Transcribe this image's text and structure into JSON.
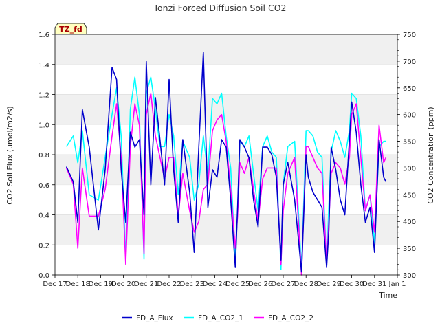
{
  "chart_data": {
    "type": "line",
    "title": "Tonzi Forced Diffusion Soil CO2",
    "badge": "TZ_fd",
    "xlabel": "Time",
    "ylabel_left": "CO2 Soil Flux (umol/m2/s)",
    "ylabel_right": "CO2 Concentration (ppm)",
    "ylim_left": [
      0,
      1.6
    ],
    "ylim_right": [
      300,
      750
    ],
    "yticks_left": [
      "0.0",
      "0.2",
      "0.4",
      "0.6",
      "0.8",
      "1.0",
      "1.2",
      "1.4",
      "1.6"
    ],
    "yticks_right": [
      "300",
      "350",
      "400",
      "450",
      "500",
      "550",
      "600",
      "650",
      "700",
      "750"
    ],
    "xticks": [
      "Dec 17",
      "Dec 18",
      "Dec 19",
      "Dec 20",
      "Dec 21",
      "Dec 22",
      "Dec 23",
      "Dec 24",
      "Dec 25",
      "Dec 26",
      "Dec 27",
      "Dec 28",
      "Dec 29",
      "Dec 30",
      "Dec 31",
      "Jan 1"
    ],
    "xlim_days": [
      17,
      32
    ],
    "grid": "horizontal bands",
    "legend_position": "bottom",
    "series": [
      {
        "name": "FD_A_Flux",
        "axis": "left",
        "color": "#0000cc",
        "x": [
          17.5,
          17.8,
          18.0,
          18.2,
          18.5,
          18.9,
          19.2,
          19.5,
          19.7,
          19.9,
          20.1,
          20.3,
          20.5,
          20.7,
          20.9,
          21.0,
          21.2,
          21.4,
          21.6,
          21.8,
          22.0,
          22.2,
          22.4,
          22.6,
          22.9,
          23.1,
          23.3,
          23.5,
          23.7,
          23.9,
          24.1,
          24.3,
          24.5,
          24.7,
          24.9,
          25.0,
          25.1,
          25.3,
          25.5,
          25.7,
          25.9,
          26.1,
          26.3,
          26.5,
          26.7,
          26.9,
          27.0,
          27.2,
          27.5,
          27.8,
          28.0,
          28.1,
          28.3,
          28.5,
          28.7,
          28.9,
          29.0,
          29.1,
          29.3,
          29.5,
          29.7,
          29.9,
          30.0,
          30.2,
          30.4,
          30.6,
          30.8,
          31.0,
          31.2,
          31.4,
          31.5
        ],
        "y": [
          0.72,
          0.62,
          0.35,
          1.1,
          0.85,
          0.3,
          0.7,
          1.38,
          1.3,
          0.7,
          0.35,
          0.95,
          0.85,
          0.9,
          0.4,
          1.42,
          0.6,
          1.18,
          0.9,
          0.6,
          1.3,
          0.7,
          0.35,
          0.9,
          0.55,
          0.15,
          0.85,
          1.48,
          0.45,
          0.7,
          0.65,
          0.9,
          0.85,
          0.5,
          0.05,
          0.45,
          0.9,
          0.85,
          0.78,
          0.5,
          0.32,
          0.85,
          0.85,
          0.8,
          0.65,
          0.1,
          0.6,
          0.75,
          0.5,
          0.02,
          0.8,
          0.65,
          0.55,
          0.5,
          0.45,
          0.05,
          0.3,
          0.85,
          0.7,
          0.5,
          0.4,
          0.9,
          1.15,
          0.95,
          0.6,
          0.35,
          0.45,
          0.15,
          0.9,
          0.65,
          0.62
        ]
      },
      {
        "name": "FD_A_CO2_1",
        "axis": "right",
        "color": "#00ffff",
        "x": [
          17.5,
          17.8,
          18.0,
          18.2,
          18.5,
          18.9,
          19.2,
          19.5,
          19.7,
          19.9,
          20.1,
          20.3,
          20.5,
          20.7,
          20.9,
          21.0,
          21.2,
          21.4,
          21.6,
          21.8,
          22.0,
          22.2,
          22.4,
          22.6,
          22.9,
          23.1,
          23.3,
          23.5,
          23.7,
          23.9,
          24.1,
          24.3,
          24.5,
          24.7,
          24.9,
          25.0,
          25.1,
          25.3,
          25.5,
          25.7,
          25.9,
          26.1,
          26.3,
          26.5,
          26.7,
          26.9,
          27.0,
          27.2,
          27.5,
          27.8,
          28.0,
          28.1,
          28.3,
          28.5,
          28.7,
          28.9,
          29.0,
          29.1,
          29.3,
          29.5,
          29.7,
          29.9,
          30.0,
          30.2,
          30.4,
          30.6,
          30.8,
          31.0,
          31.2,
          31.4,
          31.5
        ],
        "y": [
          540,
          560,
          510,
          570,
          450,
          440,
          520,
          600,
          650,
          560,
          330,
          610,
          670,
          600,
          330,
          640,
          670,
          610,
          540,
          540,
          600,
          560,
          450,
          550,
          520,
          440,
          470,
          560,
          490,
          630,
          620,
          640,
          560,
          500,
          330,
          420,
          550,
          540,
          560,
          490,
          420,
          540,
          560,
          530,
          520,
          310,
          470,
          540,
          550,
          310,
          570,
          570,
          560,
          530,
          520,
          320,
          430,
          530,
          570,
          550,
          520,
          570,
          640,
          630,
          560,
          420,
          450,
          360,
          540,
          550,
          550
        ]
      },
      {
        "name": "FD_A_CO2_2",
        "axis": "right",
        "color": "#ff00ff",
        "x": [
          17.5,
          17.8,
          18.0,
          18.2,
          18.5,
          18.9,
          19.2,
          19.5,
          19.7,
          19.9,
          20.1,
          20.3,
          20.5,
          20.7,
          20.9,
          21.0,
          21.2,
          21.4,
          21.6,
          21.8,
          22.0,
          22.2,
          22.4,
          22.6,
          22.9,
          23.1,
          23.3,
          23.5,
          23.7,
          23.9,
          24.1,
          24.3,
          24.5,
          24.7,
          24.9,
          25.0,
          25.1,
          25.3,
          25.5,
          25.7,
          25.9,
          26.1,
          26.3,
          26.5,
          26.7,
          26.9,
          27.0,
          27.2,
          27.5,
          27.8,
          28.0,
          28.1,
          28.3,
          28.5,
          28.7,
          28.9,
          29.0,
          29.1,
          29.3,
          29.5,
          29.7,
          29.9,
          30.0,
          30.2,
          30.4,
          30.6,
          30.8,
          31.0,
          31.2,
          31.4,
          31.5
        ],
        "y": [
          500,
          470,
          350,
          500,
          410,
          410,
          460,
          560,
          620,
          520,
          320,
          540,
          620,
          580,
          340,
          600,
          640,
          560,
          520,
          480,
          520,
          520,
          410,
          490,
          420,
          380,
          400,
          460,
          470,
          570,
          590,
          600,
          550,
          460,
          350,
          410,
          510,
          490,
          520,
          460,
          400,
          480,
          500,
          500,
          500,
          320,
          420,
          490,
          520,
          300,
          540,
          540,
          520,
          500,
          490,
          320,
          400,
          490,
          510,
          500,
          470,
          520,
          600,
          620,
          520,
          420,
          450,
          380,
          580,
          510,
          520
        ]
      }
    ]
  }
}
